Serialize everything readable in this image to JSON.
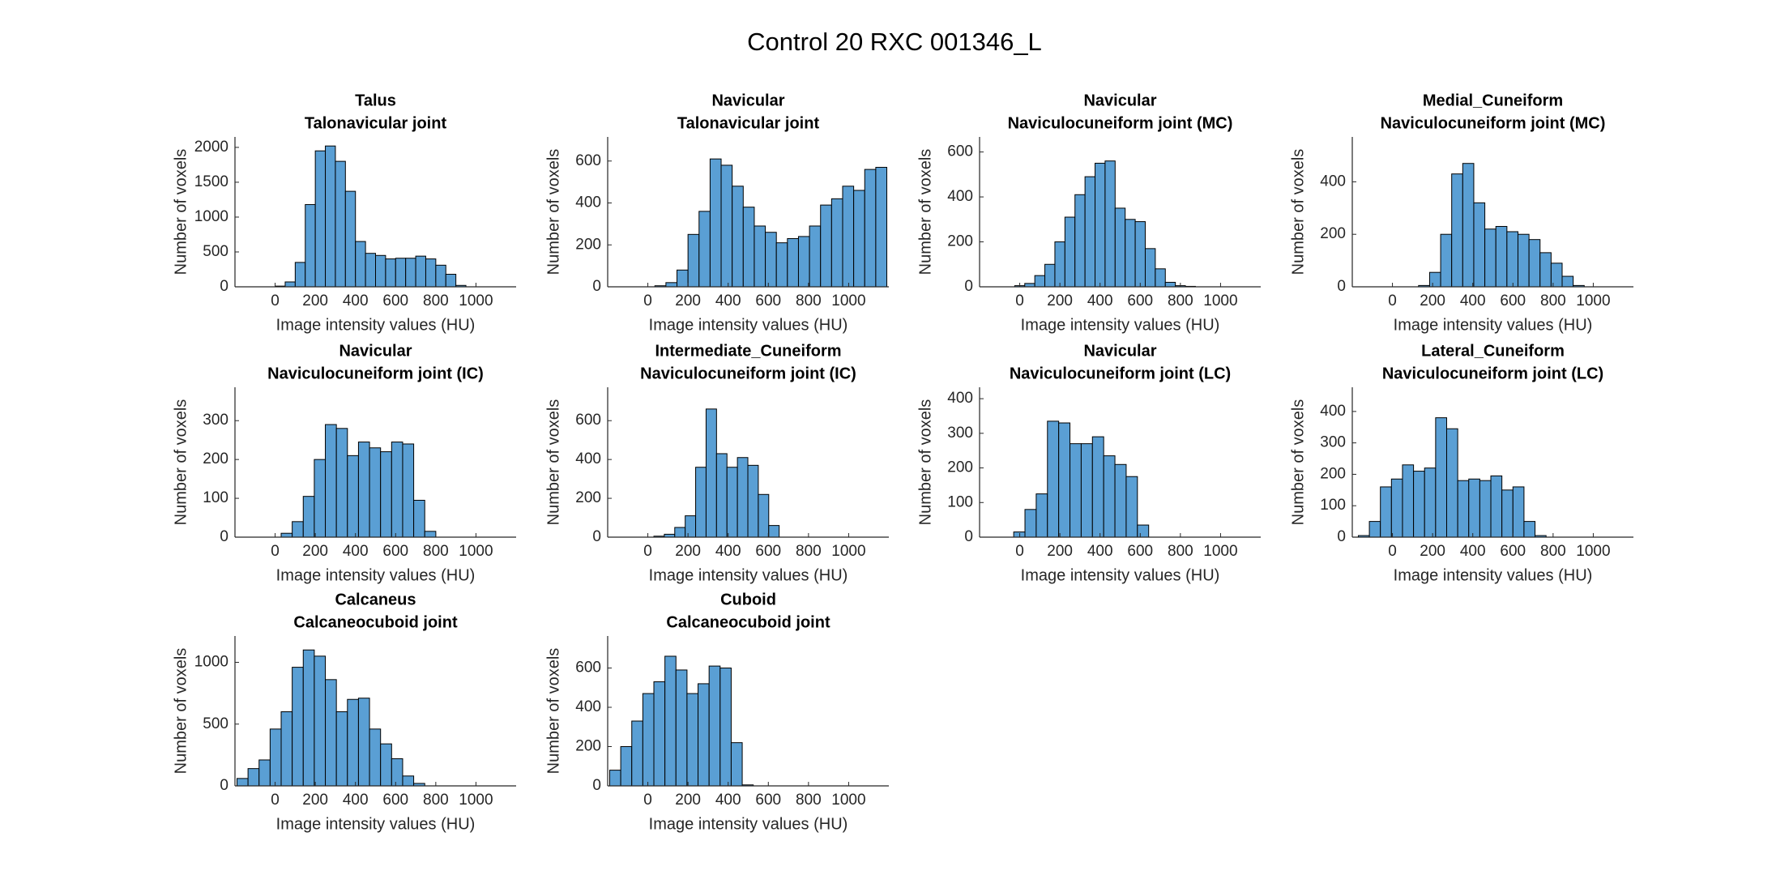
{
  "title": "Control 20 RXC 001346_L",
  "chart_data": [
    {
      "type": "histogram",
      "title": "Talus",
      "subtitle": "Talonavicular joint",
      "xlabel": "Image intensity values (HU)",
      "ylabel": "Number of voxels",
      "color": "#5a9fd4",
      "bins": [
        0,
        50,
        100,
        150,
        200,
        250,
        300,
        350,
        400,
        450,
        500,
        550,
        600,
        650,
        700,
        750,
        800,
        850,
        900,
        950
      ],
      "values": [
        10,
        70,
        350,
        1180,
        1950,
        2020,
        1800,
        1370,
        650,
        480,
        450,
        400,
        410,
        410,
        440,
        400,
        310,
        180,
        20
      ],
      "xlim": [
        -200,
        1200
      ],
      "xticks": [
        0,
        200,
        400,
        600,
        800,
        1000
      ],
      "ylim": [
        0,
        2150
      ],
      "yticks": [
        0,
        500,
        1000,
        1500,
        2000
      ]
    },
    {
      "type": "histogram",
      "title": "Navicular",
      "subtitle": "Talonavicular joint",
      "xlabel": "Image intensity values (HU)",
      "ylabel": "Number of voxels",
      "color": "#5a9fd4",
      "bins": [
        35,
        90,
        145,
        200,
        255,
        310,
        365,
        420,
        475,
        530,
        585,
        640,
        695,
        750,
        805,
        860,
        915,
        970,
        1025,
        1080,
        1135,
        1190
      ],
      "values": [
        5,
        20,
        80,
        250,
        360,
        610,
        580,
        480,
        380,
        290,
        260,
        210,
        230,
        240,
        290,
        390,
        420,
        480,
        460,
        560,
        570
      ],
      "xlim": [
        -200,
        1200
      ],
      "xticks": [
        0,
        200,
        400,
        600,
        800,
        1000
      ],
      "ylim": [
        0,
        715
      ],
      "yticks": [
        0,
        200,
        400,
        600
      ]
    },
    {
      "type": "histogram",
      "title": "Navicular",
      "subtitle": "Naviculocuneiform joint (MC)",
      "xlabel": "Image intensity values (HU)",
      "ylabel": "Number of voxels",
      "color": "#5a9fd4",
      "bins": [
        -25,
        25,
        75,
        125,
        175,
        225,
        275,
        325,
        375,
        425,
        475,
        525,
        575,
        625,
        675,
        725,
        775,
        825,
        875
      ],
      "values": [
        5,
        15,
        50,
        100,
        200,
        310,
        410,
        490,
        550,
        560,
        350,
        300,
        290,
        170,
        80,
        20,
        5,
        2
      ],
      "xlim": [
        -200,
        1200
      ],
      "xticks": [
        0,
        200,
        400,
        600,
        800,
        1000
      ],
      "ylim": [
        0,
        667
      ],
      "yticks": [
        0,
        200,
        400,
        600
      ]
    },
    {
      "type": "histogram",
      "title": "Medial_Cuneiform",
      "subtitle": "Naviculocuneiform joint (MC)",
      "xlabel": "Image intensity values (HU)",
      "ylabel": "Number of voxels",
      "color": "#5a9fd4",
      "bins": [
        130,
        185,
        240,
        295,
        350,
        405,
        460,
        515,
        570,
        625,
        680,
        735,
        790,
        845,
        900,
        955
      ],
      "values": [
        5,
        55,
        200,
        430,
        470,
        320,
        220,
        230,
        210,
        200,
        180,
        130,
        90,
        40,
        5
      ],
      "xlim": [
        -200,
        1200
      ],
      "xticks": [
        0,
        200,
        400,
        600,
        800,
        1000
      ],
      "ylim": [
        0,
        571
      ],
      "yticks": [
        0,
        200,
        400
      ]
    },
    {
      "type": "histogram",
      "title": "Navicular",
      "subtitle": "Naviculocuneiform joint (IC)",
      "xlabel": "Image intensity values (HU)",
      "ylabel": "Number of voxels",
      "color": "#5a9fd4",
      "bins": [
        30,
        85,
        140,
        195,
        250,
        305,
        360,
        415,
        470,
        525,
        580,
        635,
        690,
        745,
        800
      ],
      "values": [
        10,
        40,
        105,
        200,
        290,
        280,
        210,
        245,
        230,
        220,
        245,
        240,
        95,
        15
      ],
      "xlim": [
        -200,
        1200
      ],
      "xticks": [
        0,
        200,
        400,
        600,
        800,
        1000
      ],
      "ylim": [
        0,
        386
      ],
      "yticks": [
        0,
        100,
        200,
        300
      ]
    },
    {
      "type": "histogram",
      "title": "Intermediate_Cuneiform",
      "subtitle": "Naviculocuneiform joint (IC)",
      "xlabel": "Image intensity values (HU)",
      "ylabel": "Number of voxels",
      "color": "#5a9fd4",
      "bins": [
        30,
        82,
        134,
        186,
        238,
        290,
        342,
        394,
        446,
        498,
        550,
        602,
        654
      ],
      "values": [
        5,
        15,
        50,
        110,
        360,
        660,
        430,
        360,
        410,
        370,
        220,
        60
      ],
      "xlim": [
        -200,
        1200
      ],
      "xticks": [
        0,
        200,
        400,
        600,
        800,
        1000
      ],
      "ylim": [
        0,
        772
      ],
      "yticks": [
        0,
        200,
        400,
        600
      ]
    },
    {
      "type": "histogram",
      "title": "Navicular",
      "subtitle": "Naviculocuneiform joint (LC)",
      "xlabel": "Image intensity values (HU)",
      "ylabel": "Number of voxels",
      "color": "#5a9fd4",
      "bins": [
        -30,
        26,
        82,
        138,
        194,
        250,
        306,
        362,
        418,
        474,
        530,
        586,
        642
      ],
      "values": [
        15,
        80,
        125,
        335,
        330,
        270,
        270,
        290,
        235,
        210,
        175,
        35
      ],
      "xlim": [
        -200,
        1200
      ],
      "xticks": [
        0,
        200,
        400,
        600,
        800,
        1000
      ],
      "ylim": [
        0,
        433
      ],
      "yticks": [
        0,
        100,
        200,
        300,
        400
      ]
    },
    {
      "type": "histogram",
      "title": "Lateral_Cuneiform",
      "subtitle": "Naviculocuneiform joint (LC)",
      "xlabel": "Image intensity values (HU)",
      "ylabel": "Number of voxels",
      "color": "#5a9fd4",
      "bins": [
        -170,
        -115,
        -60,
        -5,
        50,
        105,
        160,
        215,
        270,
        325,
        380,
        435,
        490,
        545,
        600,
        655,
        710,
        765
      ],
      "values": [
        5,
        50,
        160,
        185,
        230,
        210,
        220,
        380,
        345,
        180,
        185,
        180,
        195,
        150,
        160,
        50,
        5
      ],
      "xlim": [
        -200,
        1200
      ],
      "xticks": [
        0,
        200,
        400,
        600,
        800,
        1000
      ],
      "ylim": [
        0,
        477
      ],
      "yticks": [
        0,
        100,
        200,
        300,
        400
      ]
    },
    {
      "type": "histogram",
      "title": "Calcaneus",
      "subtitle": "Calcaneocuboid joint",
      "xlabel": "Image intensity values (HU)",
      "ylabel": "Number of voxels",
      "color": "#5a9fd4",
      "bins": [
        -190,
        -135,
        -80,
        -25,
        30,
        85,
        140,
        195,
        250,
        305,
        360,
        415,
        470,
        525,
        580,
        635,
        690,
        745
      ],
      "values": [
        60,
        140,
        210,
        460,
        600,
        960,
        1100,
        1050,
        860,
        600,
        700,
        710,
        460,
        340,
        220,
        80,
        20
      ],
      "xlim": [
        -200,
        1200
      ],
      "xticks": [
        0,
        200,
        400,
        600,
        800,
        1000
      ],
      "ylim": [
        0,
        1213
      ],
      "yticks": [
        0,
        500,
        1000
      ]
    },
    {
      "type": "histogram",
      "title": "Cuboid",
      "subtitle": "Calcaneocuboid joint",
      "xlabel": "Image intensity values (HU)",
      "ylabel": "Number of voxels",
      "color": "#5a9fd4",
      "bins": [
        -190,
        -135,
        -80,
        -25,
        30,
        85,
        140,
        195,
        250,
        305,
        360,
        415,
        470,
        525
      ],
      "values": [
        80,
        200,
        330,
        470,
        530,
        660,
        590,
        470,
        520,
        610,
        600,
        220,
        5
      ],
      "xlim": [
        -200,
        1200
      ],
      "xticks": [
        0,
        200,
        400,
        600,
        800,
        1000
      ],
      "ylim": [
        0,
        763
      ],
      "yticks": [
        0,
        200,
        400,
        600
      ]
    }
  ]
}
